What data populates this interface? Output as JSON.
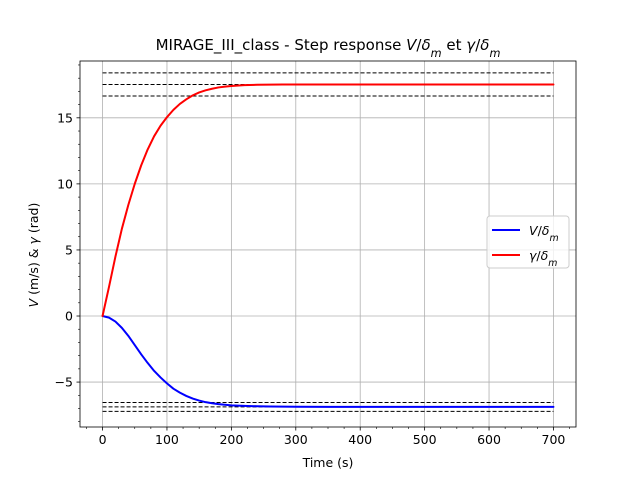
{
  "chart_data": {
    "type": "line",
    "title": "MIRAGE_III_class - Step response V/δm et γ/δm",
    "title_parts": [
      {
        "text": "MIRAGE_III_class - Step response ",
        "style": "normal"
      },
      {
        "text": "V",
        "style": "italic"
      },
      {
        "text": "/",
        "style": "normal"
      },
      {
        "text": "δ",
        "style": "italic"
      },
      {
        "text": "m",
        "style": "sub"
      },
      {
        "text": " et ",
        "style": "normal"
      },
      {
        "text": "γ",
        "style": "italic"
      },
      {
        "text": "/",
        "style": "normal"
      },
      {
        "text": "δ",
        "style": "italic"
      },
      {
        "text": "m",
        "style": "sub"
      }
    ],
    "xlabel": "Time (s)",
    "ylabel": "V (m/s) & γ (rad)",
    "ylabel_parts": [
      {
        "text": "V",
        "style": "italic"
      },
      {
        "text": " (m/s) & ",
        "style": "normal"
      },
      {
        "text": "γ",
        "style": "italic"
      },
      {
        "text": " (rad)",
        "style": "normal"
      }
    ],
    "xlim": [
      -35,
      735
    ],
    "ylim": [
      -8.4,
      19.3
    ],
    "xticks": [
      0,
      100,
      200,
      300,
      400,
      500,
      600,
      700
    ],
    "yticks": [
      -5,
      0,
      5,
      10,
      15
    ],
    "ytick_labels": [
      "−5",
      "0",
      "5",
      "10",
      "15"
    ],
    "grid": true,
    "legend_position": "center-right",
    "series": [
      {
        "name": "V/δm",
        "name_parts": [
          {
            "text": "V",
            "style": "italic"
          },
          {
            "text": "/",
            "style": "normal"
          },
          {
            "text": "δ",
            "style": "italic"
          },
          {
            "text": "m",
            "style": "sub"
          }
        ],
        "color": "#0000ff",
        "x": [
          0,
          10,
          20,
          30,
          40,
          50,
          60,
          70,
          80,
          90,
          100,
          110,
          120,
          130,
          140,
          150,
          160,
          170,
          180,
          190,
          200,
          220,
          240,
          260,
          280,
          300,
          350,
          400,
          500,
          600,
          700
        ],
        "y": [
          0,
          -0.12,
          -0.42,
          -0.9,
          -1.5,
          -2.2,
          -2.9,
          -3.55,
          -4.15,
          -4.65,
          -5.1,
          -5.5,
          -5.8,
          -6.05,
          -6.25,
          -6.4,
          -6.52,
          -6.6,
          -6.67,
          -6.72,
          -6.76,
          -6.8,
          -6.83,
          -6.85,
          -6.86,
          -6.87,
          -6.88,
          -6.88,
          -6.88,
          -6.88,
          -6.88
        ]
      },
      {
        "name": "γ/δm",
        "name_parts": [
          {
            "text": "γ",
            "style": "italic"
          },
          {
            "text": "/",
            "style": "normal"
          },
          {
            "text": "δ",
            "style": "italic"
          },
          {
            "text": "m",
            "style": "sub"
          }
        ],
        "color": "#ff0000",
        "x": [
          0,
          10,
          20,
          30,
          40,
          50,
          60,
          70,
          80,
          90,
          100,
          110,
          120,
          130,
          140,
          150,
          160,
          170,
          180,
          190,
          200,
          220,
          240,
          260,
          280,
          300,
          350,
          400,
          500,
          600,
          700
        ],
        "y": [
          0,
          2.2,
          4.5,
          6.6,
          8.4,
          10.0,
          11.4,
          12.6,
          13.6,
          14.4,
          15.05,
          15.6,
          16.05,
          16.4,
          16.7,
          16.92,
          17.08,
          17.2,
          17.3,
          17.36,
          17.41,
          17.47,
          17.5,
          17.51,
          17.52,
          17.52,
          17.52,
          17.52,
          17.52,
          17.52,
          17.52
        ]
      }
    ],
    "reference_lines": [
      {
        "y": 18.4,
        "x_range": [
          0,
          700
        ],
        "color": "#000000",
        "style": "dashed"
      },
      {
        "y": 17.52,
        "x_range": [
          0,
          700
        ],
        "color": "#000000",
        "style": "dashed"
      },
      {
        "y": 16.65,
        "x_range": [
          0,
          700
        ],
        "color": "#000000",
        "style": "dashed"
      },
      {
        "y": -6.55,
        "x_range": [
          0,
          700
        ],
        "color": "#000000",
        "style": "dashed"
      },
      {
        "y": -6.88,
        "x_range": [
          0,
          700
        ],
        "color": "#000000",
        "style": "dashed"
      },
      {
        "y": -7.22,
        "x_range": [
          0,
          700
        ],
        "color": "#000000",
        "style": "dashed"
      }
    ]
  }
}
